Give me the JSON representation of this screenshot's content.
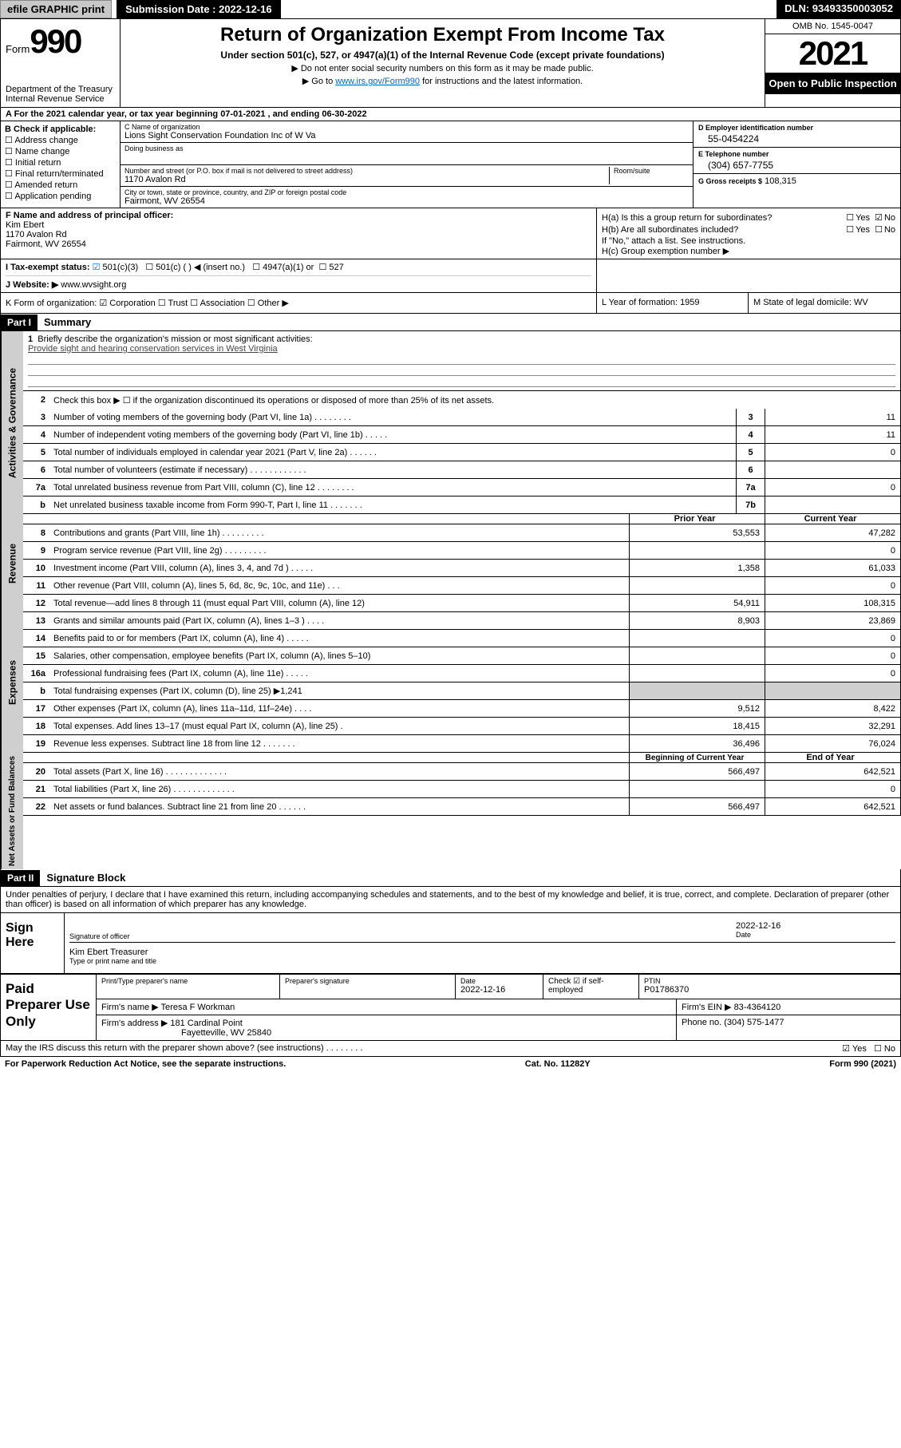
{
  "topbar": {
    "efile": "efile GRAPHIC print",
    "submission": "Submission Date : 2022-12-16",
    "dln": "DLN: 93493350003052"
  },
  "header": {
    "form_word": "Form",
    "form_num": "990",
    "dept": "Department of the Treasury",
    "irs": "Internal Revenue Service",
    "title": "Return of Organization Exempt From Income Tax",
    "sub": "Under section 501(c), 527, or 4947(a)(1) of the Internal Revenue Code (except private foundations)",
    "note1": "▶ Do not enter social security numbers on this form as it may be made public.",
    "note2_pre": "▶ Go to ",
    "note2_link": "www.irs.gov/Form990",
    "note2_post": " for instructions and the latest information.",
    "omb": "OMB No. 1545-0047",
    "year": "2021",
    "open": "Open to Public Inspection"
  },
  "rowA": "A For the 2021 calendar year, or tax year beginning 07-01-2021   , and ending 06-30-2022",
  "colB": {
    "hdr": "B Check if applicable:",
    "items": [
      "Address change",
      "Name change",
      "Initial return",
      "Final return/terminated",
      "Amended return",
      "Application pending"
    ]
  },
  "colC": {
    "name_lbl": "C Name of organization",
    "name": "Lions Sight Conservation Foundation Inc of W Va",
    "dba_lbl": "Doing business as",
    "addr_lbl": "Number and street (or P.O. box if mail is not delivered to street address)",
    "addr": "1170 Avalon Rd",
    "room_lbl": "Room/suite",
    "city_lbl": "City or town, state or province, country, and ZIP or foreign postal code",
    "city": "Fairmont, WV  26554"
  },
  "colD": {
    "ein_lbl": "D Employer identification number",
    "ein": "55-0454224",
    "tel_lbl": "E Telephone number",
    "tel": "(304) 657-7755",
    "gross_lbl": "G Gross receipts $",
    "gross": "108,315"
  },
  "rowF": {
    "lbl": "F Name and address of principal officer:",
    "name": "Kim Ebert",
    "addr1": "1170 Avalon Rd",
    "addr2": "Fairmont, WV  26554"
  },
  "rowH": {
    "a": "H(a)  Is this a group return for subordinates?",
    "b": "H(b)  Are all subordinates included?",
    "b_note": "If \"No,\" attach a list. See instructions.",
    "c": "H(c)  Group exemption number ▶"
  },
  "rowI": {
    "lbl": "I   Tax-exempt status:",
    "c3": "501(c)(3)",
    "c": "501(c) (   ) ◀ (insert no.)",
    "a1": "4947(a)(1) or",
    "s527": "527"
  },
  "rowJ": {
    "lbl": "J   Website: ▶",
    "val": "www.wvsight.org"
  },
  "rowK": "K Form of organization:  ☑ Corporation  ☐ Trust  ☐ Association  ☐ Other ▶",
  "rowL": {
    "lbl": "L Year of formation:",
    "val": "1959"
  },
  "rowM": {
    "lbl": "M State of legal domicile:",
    "val": "WV"
  },
  "part1": {
    "hdr": "Part I",
    "title": "Summary",
    "l1": "Briefly describe the organization's mission or most significant activities:",
    "l1_val": "Provide sight and hearing conservation services in West Virginia",
    "l2": "Check this box ▶ ☐  if the organization discontinued its operations or disposed of more than 25% of its net assets.",
    "lines_gov": [
      {
        "n": "3",
        "t": "Number of voting members of the governing body (Part VI, line 1a)   .    .    .    .    .    .    .    .",
        "b": "3",
        "v": "11"
      },
      {
        "n": "4",
        "t": "Number of independent voting members of the governing body (Part VI, line 1b)   .    .    .    .    .",
        "b": "4",
        "v": "11"
      },
      {
        "n": "5",
        "t": "Total number of individuals employed in calendar year 2021 (Part V, line 2a)   .    .    .    .    .    .",
        "b": "5",
        "v": "0"
      },
      {
        "n": "6",
        "t": "Total number of volunteers (estimate if necessary)   .    .    .    .    .    .    .    .    .    .    .    .",
        "b": "6",
        "v": ""
      },
      {
        "n": "7a",
        "t": "Total unrelated business revenue from Part VIII, column (C), line 12   .    .    .    .    .    .    .    .",
        "b": "7a",
        "v": "0"
      },
      {
        "n": "b",
        "t": "Net unrelated business taxable income from Form 990-T, Part I, line 11   .    .    .    .    .    .    .",
        "b": "7b",
        "v": ""
      }
    ],
    "col_prior": "Prior Year",
    "col_curr": "Current Year",
    "lines_rev": [
      {
        "n": "8",
        "t": "Contributions and grants (Part VIII, line 1h)   .    .    .    .    .    .    .    .    .",
        "p": "53,553",
        "c": "47,282"
      },
      {
        "n": "9",
        "t": "Program service revenue (Part VIII, line 2g)   .    .    .    .    .    .    .    .    .",
        "p": "",
        "c": "0"
      },
      {
        "n": "10",
        "t": "Investment income (Part VIII, column (A), lines 3, 4, and 7d )   .    .    .    .    .",
        "p": "1,358",
        "c": "61,033"
      },
      {
        "n": "11",
        "t": "Other revenue (Part VIII, column (A), lines 5, 6d, 8c, 9c, 10c, and 11e)   .    .    .",
        "p": "",
        "c": "0"
      },
      {
        "n": "12",
        "t": "Total revenue—add lines 8 through 11 (must equal Part VIII, column (A), line 12)",
        "p": "54,911",
        "c": "108,315"
      }
    ],
    "lines_exp": [
      {
        "n": "13",
        "t": "Grants and similar amounts paid (Part IX, column (A), lines 1–3 )   .    .    .    .",
        "p": "8,903",
        "c": "23,869"
      },
      {
        "n": "14",
        "t": "Benefits paid to or for members (Part IX, column (A), line 4)   .    .    .    .    .",
        "p": "",
        "c": "0"
      },
      {
        "n": "15",
        "t": "Salaries, other compensation, employee benefits (Part IX, column (A), lines 5–10)",
        "p": "",
        "c": "0"
      },
      {
        "n": "16a",
        "t": "Professional fundraising fees (Part IX, column (A), line 11e)   .    .    .    .    .",
        "p": "",
        "c": "0"
      },
      {
        "n": "b",
        "t": "Total fundraising expenses (Part IX, column (D), line 25) ▶1,241",
        "p": "GRAY",
        "c": "GRAY"
      },
      {
        "n": "17",
        "t": "Other expenses (Part IX, column (A), lines 11a–11d, 11f–24e)   .    .    .    .",
        "p": "9,512",
        "c": "8,422"
      },
      {
        "n": "18",
        "t": "Total expenses. Add lines 13–17 (must equal Part IX, column (A), line 25)   .",
        "p": "18,415",
        "c": "32,291"
      },
      {
        "n": "19",
        "t": "Revenue less expenses. Subtract line 18 from line 12   .    .    .    .    .    .    .",
        "p": "36,496",
        "c": "76,024"
      }
    ],
    "col_begin": "Beginning of Current Year",
    "col_end": "End of Year",
    "lines_na": [
      {
        "n": "20",
        "t": "Total assets (Part X, line 16)   .    .    .    .    .    .    .    .    .    .    .    .    .",
        "p": "566,497",
        "c": "642,521"
      },
      {
        "n": "21",
        "t": "Total liabilities (Part X, line 26)   .    .    .    .    .    .    .    .    .    .    .    .    .",
        "p": "",
        "c": "0"
      },
      {
        "n": "22",
        "t": "Net assets or fund balances. Subtract line 21 from line 20   .    .    .    .    .    .",
        "p": "566,497",
        "c": "642,521"
      }
    ]
  },
  "part2": {
    "hdr": "Part II",
    "title": "Signature Block",
    "penalty": "Under penalties of perjury, I declare that I have examined this return, including accompanying schedules and statements, and to the best of my knowledge and belief, it is true, correct, and complete. Declaration of preparer (other than officer) is based on all information of which preparer has any knowledge.",
    "sign_here": "Sign Here",
    "sig_officer": "Signature of officer",
    "sig_date": "Date",
    "sig_date_val": "2022-12-16",
    "officer_name": "Kim Ebert  Treasurer",
    "type_name": "Type or print name and title"
  },
  "paid": {
    "hdr": "Paid Preparer Use Only",
    "col1": "Print/Type preparer's name",
    "col2": "Preparer's signature",
    "col3_lbl": "Date",
    "col3": "2022-12-16",
    "col4": "Check ☑ if self-employed",
    "col5_lbl": "PTIN",
    "col5": "P01786370",
    "firm_name_lbl": "Firm's name    ▶",
    "firm_name": "Teresa F Workman",
    "firm_ein_lbl": "Firm's EIN ▶",
    "firm_ein": "83-4364120",
    "firm_addr_lbl": "Firm's address ▶",
    "firm_addr1": "181 Cardinal Point",
    "firm_addr2": "Fayetteville, WV  25840",
    "phone_lbl": "Phone no.",
    "phone": "(304) 575-1477"
  },
  "footer": {
    "discuss": "May the IRS discuss this return with the preparer shown above? (see instructions)   .    .    .    .    .    .    .    .",
    "yes": "☑ Yes",
    "no": "☐ No",
    "pra": "For Paperwork Reduction Act Notice, see the separate instructions.",
    "cat": "Cat. No. 11282Y",
    "form": "Form 990 (2021)"
  },
  "vtabs": {
    "gov": "Activities & Governance",
    "rev": "Revenue",
    "exp": "Expenses",
    "na": "Net Assets or Fund Balances"
  }
}
